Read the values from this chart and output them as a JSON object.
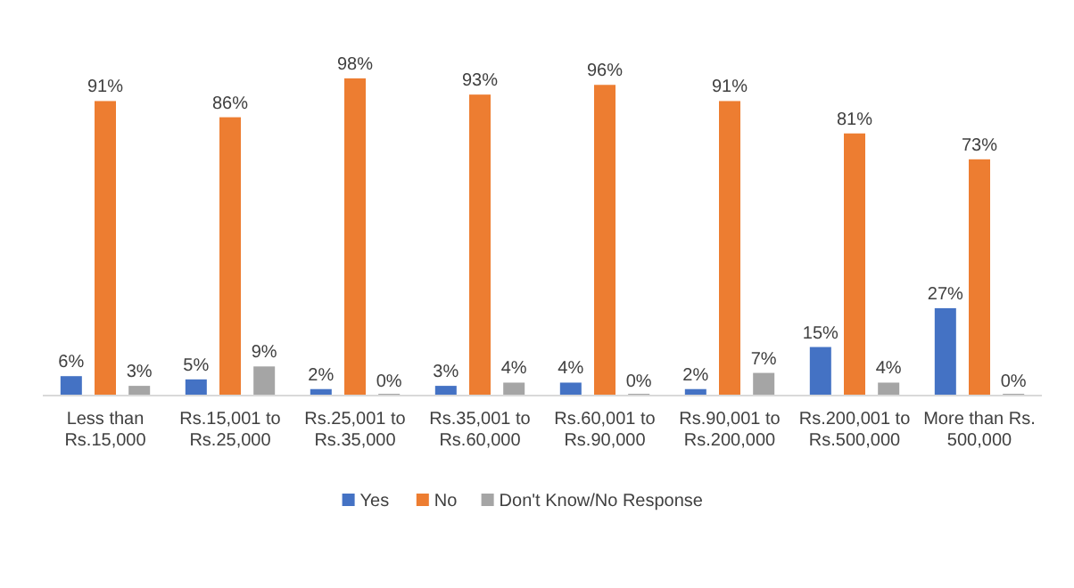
{
  "chart_data": {
    "type": "bar",
    "categories": [
      "Less than Rs.15,000",
      "Rs.15,001 to Rs.25,000",
      "Rs.25,001 to Rs.35,000",
      "Rs.35,001 to Rs.60,000",
      "Rs.60,001 to Rs.90,000",
      "Rs.90,001 to Rs.200,000",
      "Rs.200,001 to Rs.500,000",
      "More than Rs. 500,000"
    ],
    "series": [
      {
        "name": "Yes",
        "color": "#4472c4",
        "values": [
          6,
          5,
          2,
          3,
          4,
          2,
          15,
          27
        ],
        "value_labels": [
          "6%",
          "5%",
          "2%",
          "3%",
          "4%",
          "2%",
          "15%",
          "27%"
        ]
      },
      {
        "name": "No",
        "color": "#ed7d31",
        "values": [
          91,
          86,
          98,
          93,
          96,
          91,
          81,
          73
        ],
        "value_labels": [
          "91%",
          "86%",
          "98%",
          "93%",
          "96%",
          "91%",
          "81%",
          "73%"
        ]
      },
      {
        "name": "Don't Know/No Response",
        "color": "#a5a5a5",
        "values": [
          3,
          9,
          0,
          4,
          0,
          7,
          4,
          0
        ],
        "value_labels": [
          "3%",
          "9%",
          "0%",
          "4%",
          "0%",
          "7%",
          "4%",
          "0%"
        ]
      }
    ],
    "legend": "bottom",
    "grid": false
  }
}
